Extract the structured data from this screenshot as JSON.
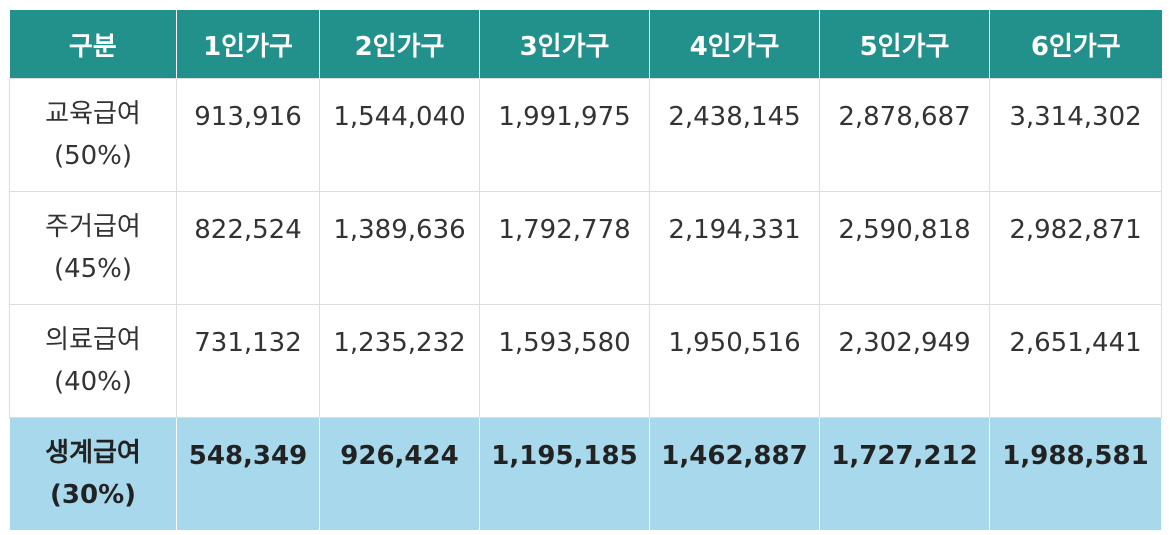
{
  "header": [
    "구분",
    "1인가구",
    "2인가구",
    "3인가구",
    "4인가구",
    "5인가구",
    "6인가구"
  ],
  "rows": [
    {
      "label": "교육급여",
      "pct": "(50%)",
      "values": [
        "913,916",
        "1,544,040",
        "1,991,975",
        "2,438,145",
        "2,878,687",
        "3,314,302"
      ]
    },
    {
      "label": "주거급여",
      "pct": "(45%)",
      "values": [
        "822,524",
        "1,389,636",
        "1,792,778",
        "2,194,331",
        "2,590,818",
        "2,982,871"
      ]
    },
    {
      "label": "의료급여",
      "pct": "(40%)",
      "values": [
        "731,132",
        "1,235,232",
        "1,593,580",
        "1,950,516",
        "2,302,949",
        "2,651,441"
      ]
    },
    {
      "label": "생계급여",
      "pct": "(30%)",
      "values": [
        "548,349",
        "926,424",
        "1,195,185",
        "1,462,887",
        "1,727,212",
        "1,988,581"
      ]
    }
  ],
  "colors": {
    "header_bg": "#22918b",
    "highlight_bg": "#a8d8ec"
  }
}
